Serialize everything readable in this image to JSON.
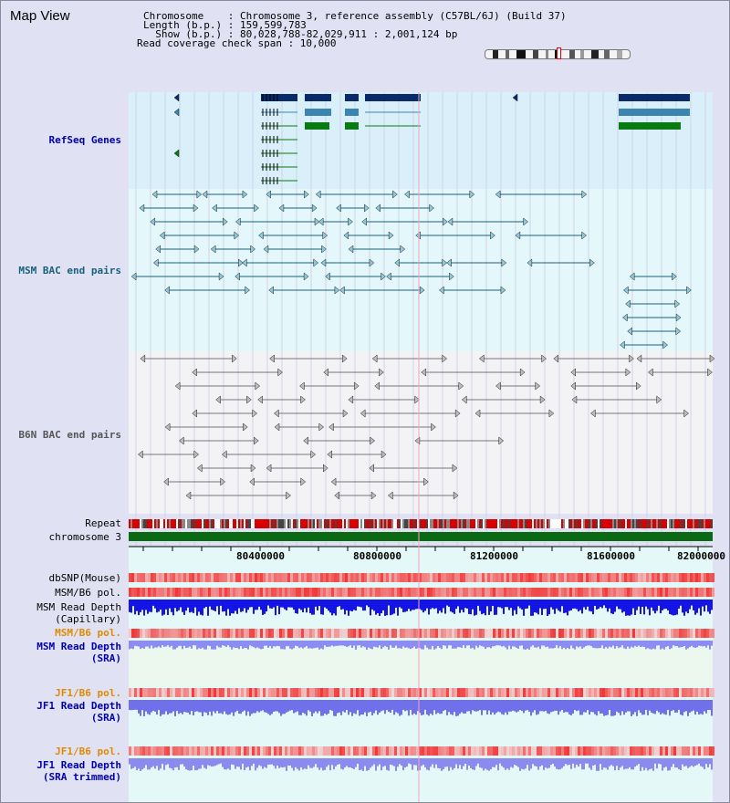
{
  "window": {
    "title": "Map View"
  },
  "info": {
    "chromosome": "Chromosome    : Chromosome 3, reference assembly (C57BL/6J) (Build 37)",
    "length": "Length (b.p.) : 159,599,783",
    "show": "  Show (b.p.) : 80,028,788-82,029,911 : 2,001,124 bp",
    "coverage": "Read coverage check span : 10,000"
  },
  "tracks": {
    "refseq": "RefSeq Genes",
    "msm_bac": "MSM BAC end pairs",
    "b6n_bac": "B6N BAC end pairs",
    "repeat": "Repeat",
    "chromosome": "chromosome 3",
    "dbsnp": "dbSNP(Mouse)",
    "msm_pol_top": "MSM/B6 pol.",
    "msm_depth_cap": "MSM Read Depth\n(Capillary)",
    "msm_pol_sra": "MSM/B6 pol.",
    "msm_depth_sra": "MSM Read Depth\n(SRA)",
    "jf1_pol": "JF1/B6 pol.",
    "jf1_depth_sra": "JF1 Read Depth\n(SRA)",
    "jf1_pol2": "JF1/B6 pol.",
    "jf1_depth_trim": "JF1 Read Depth\n(SRA trimmed)"
  },
  "axis": {
    "ticks": [
      "80400000",
      "80800000",
      "81200000",
      "81600000",
      "82000000"
    ]
  },
  "colors": {
    "refseq_bg": "#d9effa",
    "bac_bg": "#e4f7fb",
    "b6n_bg": "#f3f3f5",
    "gene_dark": "#0a2a6a",
    "gene_mid": "#3a86b0",
    "gene_green": "#0a7a12",
    "bac_blue": "#17607c",
    "b6n_gray": "#666666",
    "label_blue": "#0000aa",
    "label_orange": "#e08a00"
  }
}
